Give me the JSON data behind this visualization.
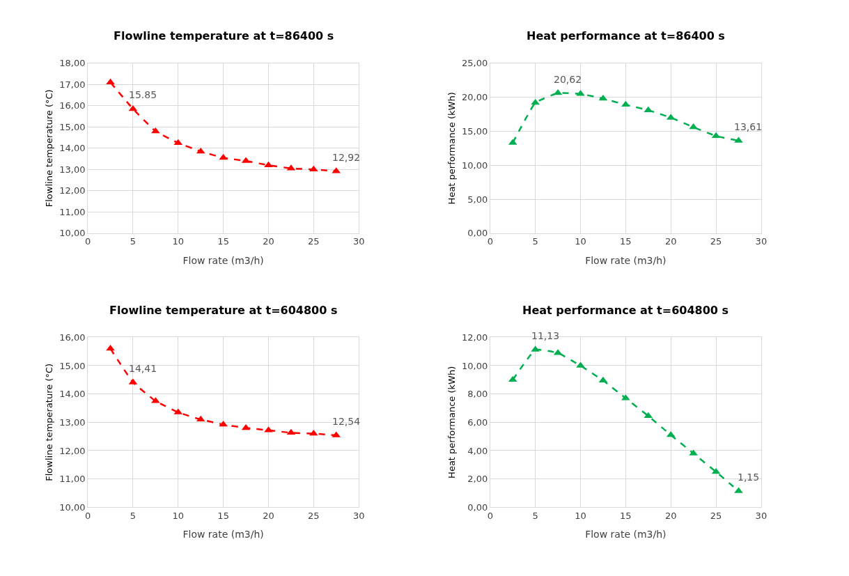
{
  "chart_data": [
    {
      "type": "line",
      "title": "Flowline temperature at t=86400 s",
      "xlabel": "Flow rate (m3/h)",
      "ylabel": "Flowline temperature (°C)",
      "x": [
        2.5,
        5,
        7.5,
        10,
        12.5,
        15,
        17.5,
        20,
        22.5,
        25,
        27.5
      ],
      "series": [
        {
          "color": "#ff0000",
          "values": [
            17.1,
            15.85,
            14.8,
            14.25,
            13.85,
            13.55,
            13.4,
            13.2,
            13.05,
            13.0,
            12.92
          ]
        }
      ],
      "xlim": [
        0,
        30
      ],
      "xticks": [
        0,
        5,
        10,
        15,
        20,
        25,
        30
      ],
      "ylim": [
        10,
        18
      ],
      "yticks": [
        {
          "value": 10,
          "label": "10,00"
        },
        {
          "value": 11,
          "label": "11,00"
        },
        {
          "value": 12,
          "label": "12,00"
        },
        {
          "value": 13,
          "label": "13,00"
        },
        {
          "value": 14,
          "label": "14,00"
        },
        {
          "value": 15,
          "label": "15,00"
        },
        {
          "value": 16,
          "label": "16,00"
        },
        {
          "value": 17,
          "label": "17,00"
        },
        {
          "value": 18,
          "label": "18,00"
        }
      ],
      "annotations": [
        {
          "text": "15.85",
          "x": 5,
          "y": 15.85
        },
        {
          "text": "12,92",
          "x": 27.5,
          "y": 12.92
        }
      ],
      "grid": true,
      "marker": "triangle",
      "line_style": "dashed"
    },
    {
      "type": "line",
      "title": "Heat performance at t=86400 s",
      "xlabel": "Flow rate (m3/h)",
      "ylabel": "Heat performance (kWh)",
      "x": [
        2.5,
        5,
        7.5,
        10,
        12.5,
        15,
        17.5,
        20,
        22.5,
        25,
        27.5
      ],
      "series": [
        {
          "color": "#00b050",
          "values": [
            13.3,
            19.2,
            20.62,
            20.5,
            19.8,
            18.9,
            18.1,
            17.0,
            15.6,
            14.3,
            13.61
          ]
        }
      ],
      "xlim": [
        0,
        30
      ],
      "xticks": [
        0,
        5,
        10,
        15,
        20,
        25,
        30
      ],
      "ylim": [
        0,
        25
      ],
      "yticks": [
        {
          "value": 0,
          "label": "0,00"
        },
        {
          "value": 5,
          "label": "5,00"
        },
        {
          "value": 10,
          "label": "10,00"
        },
        {
          "value": 15,
          "label": "15,00"
        },
        {
          "value": 20,
          "label": "20,00"
        },
        {
          "value": 25,
          "label": "25,00"
        }
      ],
      "annotations": [
        {
          "text": "20,62",
          "x": 7.5,
          "y": 20.62
        },
        {
          "text": "13,61",
          "x": 27.5,
          "y": 13.61
        }
      ],
      "grid": true,
      "marker": "triangle",
      "line_style": "dashed"
    },
    {
      "type": "line",
      "title": "Flowline temperature at t=604800 s",
      "xlabel": "Flow rate (m3/h)",
      "ylabel": "Flowline temperature (°C)",
      "x": [
        2.5,
        5,
        7.5,
        10,
        12.5,
        15,
        17.5,
        20,
        22.5,
        25,
        27.5
      ],
      "series": [
        {
          "color": "#ff0000",
          "values": [
            15.6,
            14.41,
            13.75,
            13.35,
            13.1,
            12.92,
            12.8,
            12.72,
            12.63,
            12.6,
            12.54
          ]
        }
      ],
      "xlim": [
        0,
        30
      ],
      "xticks": [
        0,
        5,
        10,
        15,
        20,
        25,
        30
      ],
      "ylim": [
        10,
        16
      ],
      "yticks": [
        {
          "value": 10,
          "label": "10,00"
        },
        {
          "value": 11,
          "label": "11,00"
        },
        {
          "value": 12,
          "label": "12,00"
        },
        {
          "value": 13,
          "label": "13,00"
        },
        {
          "value": 14,
          "label": "14,00"
        },
        {
          "value": 15,
          "label": "15,00"
        },
        {
          "value": 16,
          "label": "16,00"
        }
      ],
      "annotations": [
        {
          "text": "14,41",
          "x": 5,
          "y": 14.41
        },
        {
          "text": "12,54",
          "x": 27.5,
          "y": 12.54
        }
      ],
      "grid": true,
      "marker": "triangle",
      "line_style": "dashed"
    },
    {
      "type": "line",
      "title": "Heat performance at t=604800 s",
      "xlabel": "Flow rate (m3/h)",
      "ylabel": "Heat performance (kWh)",
      "x": [
        2.5,
        5,
        7.5,
        10,
        12.5,
        15,
        17.5,
        20,
        22.5,
        25,
        27.5
      ],
      "series": [
        {
          "color": "#00b050",
          "values": [
            9.0,
            11.13,
            10.9,
            10.0,
            8.95,
            7.7,
            6.45,
            5.1,
            3.8,
            2.5,
            1.15
          ]
        }
      ],
      "xlim": [
        0,
        30
      ],
      "xticks": [
        0,
        5,
        10,
        15,
        20,
        25,
        30
      ],
      "ylim": [
        0,
        12
      ],
      "yticks": [
        {
          "value": 0,
          "label": "0,00"
        },
        {
          "value": 2,
          "label": "2,00"
        },
        {
          "value": 4,
          "label": "4,00"
        },
        {
          "value": 6,
          "label": "6,00"
        },
        {
          "value": 8,
          "label": "8,00"
        },
        {
          "value": 10,
          "label": "10,00"
        },
        {
          "value": 12,
          "label": "12,00"
        }
      ],
      "annotations": [
        {
          "text": "11,13",
          "x": 5,
          "y": 11.13
        },
        {
          "text": "1,15",
          "x": 27.5,
          "y": 1.15
        }
      ],
      "grid": true,
      "marker": "triangle",
      "line_style": "dashed"
    }
  ]
}
